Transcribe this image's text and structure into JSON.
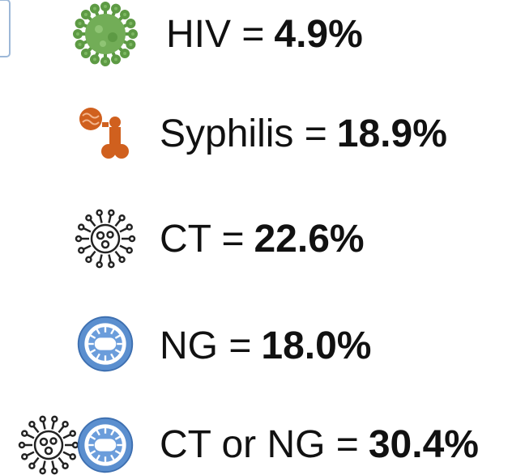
{
  "items": [
    {
      "label": "HIV =",
      "value": "4.9%"
    },
    {
      "label": "Syphilis =",
      "value": "18.9%"
    },
    {
      "label": "CT =",
      "value": "22.6%"
    },
    {
      "label": "NG =",
      "value": "18.0%"
    },
    {
      "label": "CT or NG =",
      "value": "30.4%"
    }
  ]
}
